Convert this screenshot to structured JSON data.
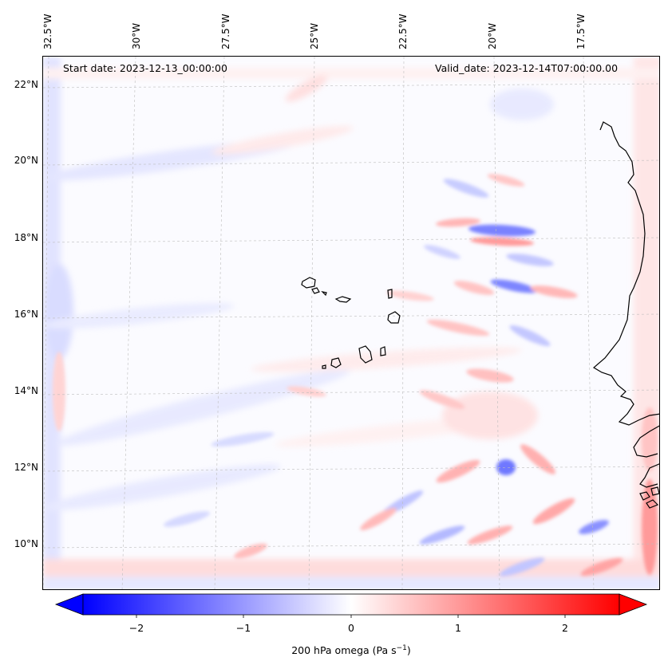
{
  "header": {
    "start_date": "Start date: 2023-12-13_00:00:00",
    "valid_date": "Valid_date: 2023-12-14T07:00:00.00"
  },
  "map": {
    "lon_labels": [
      "32.5°W",
      "30°W",
      "27.5°W",
      "25°W",
      "22.5°W",
      "20°W",
      "17.5°W"
    ],
    "lat_labels": [
      "22°N",
      "20°N",
      "18°N",
      "16°N",
      "14°N",
      "12°N",
      "10°N"
    ],
    "gridlines": true,
    "coastlines": true,
    "field": "200 hPa omega"
  },
  "colorbar": {
    "ticks": [
      "−2",
      "−1",
      "0",
      "1",
      "2"
    ],
    "label_main": "200 hPa omega (Pa s",
    "label_exp": "−1",
    "label_end": ")",
    "colormap": "bwr",
    "range": [
      -2.6,
      2.6
    ],
    "extend": "both",
    "colors": {
      "low": "#0000ff",
      "mid": "#ffffff",
      "high": "#ff0000"
    }
  }
}
